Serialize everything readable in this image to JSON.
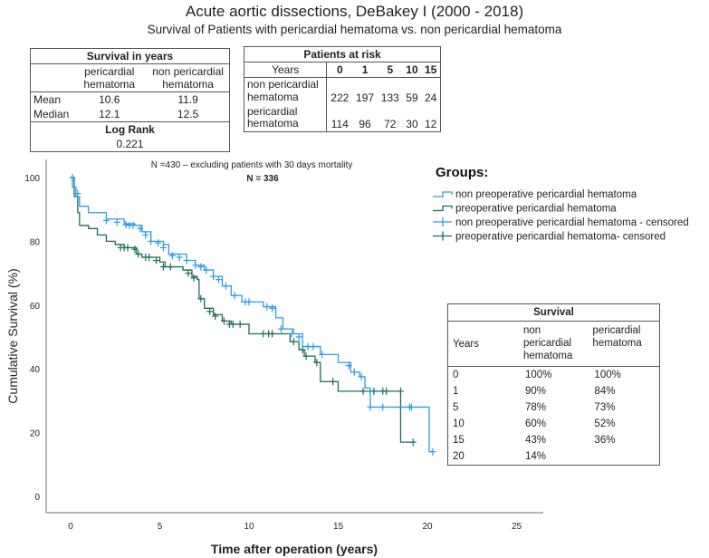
{
  "title": "Acute aortic dissections, DeBakey I (2000 - 2018)",
  "subtitle": "Survival of Patients with pericardial hematoma vs. non pericardial hematoma",
  "survival_years": {
    "title": "Survival in years",
    "col1": "pericardial hematoma",
    "col2": "non pericardial hematoma",
    "rows": [
      {
        "label": "Mean",
        "v1": "10.6",
        "v2": "11.9"
      },
      {
        "label": "Median",
        "v1": "12.1",
        "v2": "12.5"
      }
    ],
    "logrank_label": "Log Rank",
    "logrank": "0.221"
  },
  "at_risk": {
    "title": "Patients at risk",
    "years_label": "Years",
    "years": [
      "0",
      "1",
      "5",
      "10",
      "15"
    ],
    "rows": [
      {
        "l1": "non pericardial",
        "l2": "hematoma",
        "v": [
          "222",
          "197",
          "133",
          "59",
          "24"
        ]
      },
      {
        "l1": "pericardial",
        "l2": "hematoma",
        "v": [
          "114",
          "96",
          "72",
          "30",
          "12"
        ]
      }
    ]
  },
  "survival_table": {
    "title": "Survival",
    "years_label": "Years",
    "col1": [
      "non",
      "pericardial",
      "hematoma"
    ],
    "col2": [
      "pericardial",
      "hematoma"
    ],
    "rows": [
      [
        "0",
        "100%",
        "100%"
      ],
      [
        "1",
        "90%",
        "84%"
      ],
      [
        "5",
        "78%",
        "73%"
      ],
      [
        "10",
        "60%",
        "52%"
      ],
      [
        "15",
        "43%",
        "36%"
      ],
      [
        "20",
        "14%",
        ""
      ]
    ]
  },
  "chart_data": {
    "type": "line",
    "subtype": "kaplan-meier",
    "annotation1": "N =430 – excluding patients with 30 days mortality",
    "annotation2": "N = 336",
    "xlabel": "Time after operation (years)",
    "ylabel": "Cumulative Survival (%)",
    "xlim": [
      0,
      25
    ],
    "ylim": [
      0,
      100
    ],
    "xticks": [
      "0",
      "5",
      "10",
      "15",
      "20",
      "25"
    ],
    "yticks": [
      "0",
      "20",
      "40",
      "60",
      "80",
      "100"
    ],
    "legend_title": "Groups:",
    "legend": [
      "non preoperative pericardial hematoma",
      "preoperative pericardial hematoma",
      "non preoperative pericardial hematoma - censored",
      "preoperative pericardial hematoma- censored"
    ],
    "colors": {
      "non": "#2e9be8",
      "peri": "#1f6b5c"
    },
    "series": [
      {
        "name": "non preoperative pericardial hematoma",
        "steps": [
          [
            0,
            100
          ],
          [
            0.1,
            97
          ],
          [
            0.3,
            94
          ],
          [
            0.5,
            91
          ],
          [
            1,
            89
          ],
          [
            2,
            87
          ],
          [
            3,
            85.5
          ],
          [
            3.6,
            85
          ],
          [
            4,
            83
          ],
          [
            4.5,
            80
          ],
          [
            5.2,
            79
          ],
          [
            5.5,
            76
          ],
          [
            6.5,
            74
          ],
          [
            7,
            72.5
          ],
          [
            7.5,
            71
          ],
          [
            8,
            69
          ],
          [
            8.5,
            66
          ],
          [
            9,
            63
          ],
          [
            9.6,
            61
          ],
          [
            10.8,
            59.5
          ],
          [
            11.5,
            56
          ],
          [
            11.9,
            52.5
          ],
          [
            12.5,
            51
          ],
          [
            13,
            47
          ],
          [
            14,
            44.5
          ],
          [
            15,
            42
          ],
          [
            15.7,
            39
          ],
          [
            16.2,
            37.5
          ],
          [
            16.5,
            34
          ],
          [
            16.8,
            28
          ],
          [
            20.1,
            14
          ],
          [
            20.3,
            14
          ]
        ],
        "censored": [
          [
            0.1,
            100
          ],
          [
            0.4,
            95
          ],
          [
            2,
            86.5
          ],
          [
            2.6,
            86
          ],
          [
            3.1,
            85.2
          ],
          [
            3.3,
            85
          ],
          [
            3.5,
            85
          ],
          [
            3.9,
            84
          ],
          [
            4.2,
            82
          ],
          [
            4.5,
            80
          ],
          [
            4.9,
            79.5
          ],
          [
            5.2,
            78
          ],
          [
            5.7,
            75.5
          ],
          [
            6.1,
            75
          ],
          [
            6.5,
            74
          ],
          [
            7,
            72.5
          ],
          [
            7.3,
            72
          ],
          [
            7.6,
            71
          ],
          [
            8,
            69
          ],
          [
            8.3,
            68
          ],
          [
            8.7,
            66
          ],
          [
            9.2,
            63
          ],
          [
            9.8,
            61
          ],
          [
            10,
            61
          ],
          [
            11,
            59.5
          ],
          [
            11.3,
            59
          ],
          [
            11.8,
            52.5
          ],
          [
            12.4,
            51
          ],
          [
            12.8,
            50
          ],
          [
            13.3,
            47
          ],
          [
            13.6,
            47
          ],
          [
            14.1,
            44.5
          ],
          [
            15.6,
            41
          ],
          [
            15.9,
            39
          ],
          [
            16.3,
            37.5
          ],
          [
            16.8,
            28
          ],
          [
            17.5,
            28
          ],
          [
            19,
            28
          ],
          [
            19.1,
            28
          ],
          [
            20.3,
            14
          ]
        ]
      },
      {
        "name": "preoperative pericardial hematoma",
        "steps": [
          [
            0,
            100
          ],
          [
            0.2,
            94
          ],
          [
            0.4,
            89
          ],
          [
            0.5,
            85
          ],
          [
            1,
            84
          ],
          [
            1.5,
            82
          ],
          [
            2,
            80
          ],
          [
            2.5,
            79
          ],
          [
            3,
            78
          ],
          [
            3.7,
            76
          ],
          [
            4,
            75
          ],
          [
            5,
            73.5
          ],
          [
            5.3,
            72
          ],
          [
            6.3,
            71
          ],
          [
            6.8,
            69
          ],
          [
            7.1,
            68
          ],
          [
            7.2,
            62
          ],
          [
            7.5,
            59
          ],
          [
            8,
            57
          ],
          [
            8.5,
            55
          ],
          [
            9,
            54
          ],
          [
            10,
            51
          ],
          [
            12.3,
            48.5
          ],
          [
            12.8,
            46
          ],
          [
            13.1,
            44
          ],
          [
            13.7,
            42
          ],
          [
            14,
            36
          ],
          [
            15,
            33
          ],
          [
            18.5,
            17
          ],
          [
            19.2,
            17
          ]
        ],
        "censored": [
          [
            2.8,
            78
          ],
          [
            3,
            78
          ],
          [
            3.2,
            78
          ],
          [
            3.6,
            77.5
          ],
          [
            3.8,
            76
          ],
          [
            4.2,
            75
          ],
          [
            4.4,
            75
          ],
          [
            4.8,
            74
          ],
          [
            5.2,
            72
          ],
          [
            5.6,
            72
          ],
          [
            6.6,
            70
          ],
          [
            6.9,
            68.5
          ],
          [
            7.3,
            62
          ],
          [
            7.8,
            58
          ],
          [
            8.1,
            56.5
          ],
          [
            8.6,
            55
          ],
          [
            8.9,
            54
          ],
          [
            9.1,
            54
          ],
          [
            9.5,
            54
          ],
          [
            10.8,
            51
          ],
          [
            11.1,
            51
          ],
          [
            11.3,
            51
          ],
          [
            12.5,
            48.5
          ],
          [
            13,
            46
          ],
          [
            13.2,
            44
          ],
          [
            13.8,
            42
          ],
          [
            14.7,
            36
          ],
          [
            16.4,
            33
          ],
          [
            17,
            33
          ],
          [
            17.5,
            33
          ],
          [
            17.7,
            33
          ],
          [
            18.5,
            33
          ],
          [
            19.2,
            17
          ]
        ]
      }
    ]
  }
}
